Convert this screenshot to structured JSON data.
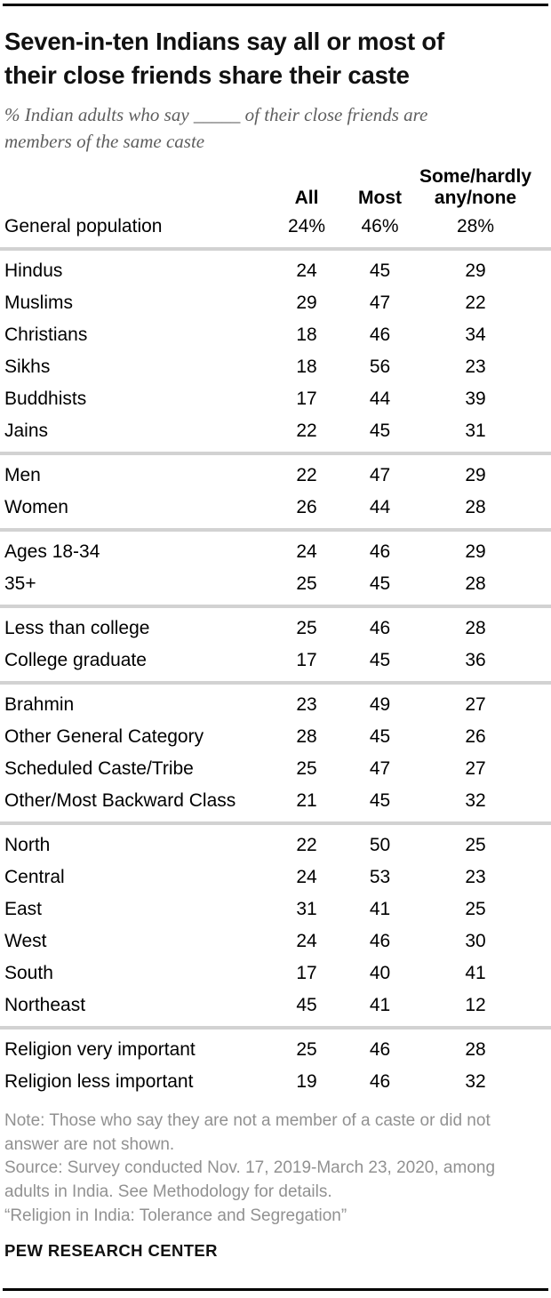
{
  "title": "Seven-in-ten Indians say all or most of\ntheir close friends share their caste",
  "subtitle": "% Indian adults who say _____ of their close friends are\nmembers of the same caste",
  "chart_data": {
    "type": "table",
    "unit": "% of Indian adults",
    "columns": [
      "All",
      "Most",
      "Some/hardly any/none"
    ],
    "columns_display": [
      "All",
      "Most",
      "Some/hardly\nany/none"
    ],
    "groups": [
      {
        "name": "general",
        "rows": [
          {
            "label": "General population",
            "values": [
              "24%",
              "46%",
              "28%"
            ]
          }
        ]
      },
      {
        "name": "religious-groups",
        "rows": [
          {
            "label": "Hindus",
            "values": [
              "24",
              "45",
              "29"
            ]
          },
          {
            "label": "Muslims",
            "values": [
              "29",
              "47",
              "22"
            ]
          },
          {
            "label": "Christians",
            "values": [
              "18",
              "46",
              "34"
            ]
          },
          {
            "label": "Sikhs",
            "values": [
              "18",
              "56",
              "23"
            ]
          },
          {
            "label": "Buddhists",
            "values": [
              "17",
              "44",
              "39"
            ]
          },
          {
            "label": "Jains",
            "values": [
              "22",
              "45",
              "31"
            ]
          }
        ]
      },
      {
        "name": "gender",
        "rows": [
          {
            "label": "Men",
            "values": [
              "22",
              "47",
              "29"
            ]
          },
          {
            "label": "Women",
            "values": [
              "26",
              "44",
              "28"
            ]
          }
        ]
      },
      {
        "name": "age",
        "rows": [
          {
            "label": "Ages 18-34",
            "values": [
              "24",
              "46",
              "29"
            ]
          },
          {
            "label": "35+",
            "values": [
              "25",
              "45",
              "28"
            ]
          }
        ]
      },
      {
        "name": "education",
        "rows": [
          {
            "label": "Less than college",
            "values": [
              "25",
              "46",
              "28"
            ]
          },
          {
            "label": "College graduate",
            "values": [
              "17",
              "45",
              "36"
            ]
          }
        ]
      },
      {
        "name": "caste-category",
        "rows": [
          {
            "label": "Brahmin",
            "values": [
              "23",
              "49",
              "27"
            ]
          },
          {
            "label": "Other General Category",
            "values": [
              "28",
              "45",
              "26"
            ]
          },
          {
            "label": "Scheduled Caste/Tribe",
            "values": [
              "25",
              "47",
              "27"
            ]
          },
          {
            "label": "Other/Most Backward Class",
            "values": [
              "21",
              "45",
              "32"
            ]
          }
        ]
      },
      {
        "name": "region",
        "rows": [
          {
            "label": "North",
            "values": [
              "22",
              "50",
              "25"
            ]
          },
          {
            "label": "Central",
            "values": [
              "24",
              "53",
              "23"
            ]
          },
          {
            "label": "East",
            "values": [
              "31",
              "41",
              "25"
            ]
          },
          {
            "label": "West",
            "values": [
              "24",
              "46",
              "30"
            ]
          },
          {
            "label": "South",
            "values": [
              "17",
              "40",
              "41"
            ]
          },
          {
            "label": "Northeast",
            "values": [
              "45",
              "41",
              "12"
            ]
          }
        ]
      },
      {
        "name": "religion-importance",
        "rows": [
          {
            "label": "Religion very important",
            "values": [
              "25",
              "46",
              "28"
            ]
          },
          {
            "label": "Religion less important",
            "values": [
              "19",
              "46",
              "32"
            ]
          }
        ]
      }
    ]
  },
  "notes": {
    "note": "Note: Those who say they are not a member of a caste or did not\nanswer are not shown.",
    "source": "Source: Survey conducted Nov. 17, 2019-March 23, 2020, among\nadults in India. See Methodology for details.",
    "report": "“Religion in India: Tolerance and Segregation”"
  },
  "footer": "PEW RESEARCH CENTER",
  "colors": {
    "text": "#111111",
    "subtitle_gray": "#5e5e5e",
    "note_gray": "#919191",
    "separator_gray": "#d2d2d2",
    "rule_black": "#000000"
  }
}
